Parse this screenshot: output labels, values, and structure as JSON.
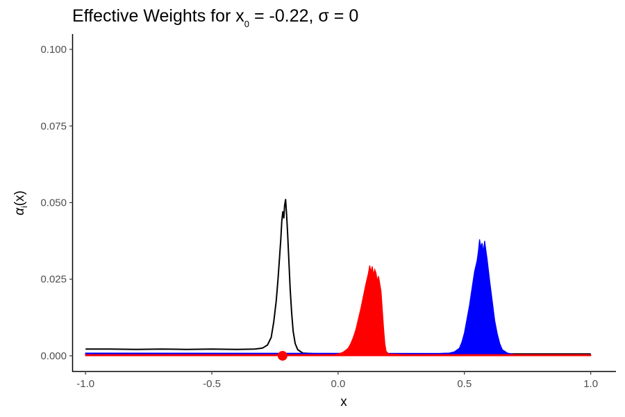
{
  "chart_data": {
    "type": "area",
    "title": {
      "prefix": "Effective Weights for x",
      "subscript": "0",
      "suffix": " = -0.22, σ = 0"
    },
    "xlabel": "x",
    "ylabel": {
      "symbol": "α",
      "subscript": "i",
      "suffix": "(x)"
    },
    "xlim": [
      -1.05,
      1.1
    ],
    "ylim": [
      -0.005,
      0.105
    ],
    "x_ticks": [
      {
        "value": -1.0,
        "label": "-1.0"
      },
      {
        "value": -0.5,
        "label": "-0.5"
      },
      {
        "value": 0.0,
        "label": "0.0"
      },
      {
        "value": 0.5,
        "label": "0.5"
      },
      {
        "value": 1.0,
        "label": "1.0"
      }
    ],
    "y_ticks": [
      {
        "value": 0.0,
        "label": "0.000"
      },
      {
        "value": 0.025,
        "label": "0.025"
      },
      {
        "value": 0.05,
        "label": "0.050"
      },
      {
        "value": 0.075,
        "label": "0.075"
      },
      {
        "value": 0.1,
        "label": "0.100"
      }
    ],
    "grid": false,
    "legend": "none",
    "series": [
      {
        "style": "line",
        "color": "#000000",
        "points": [
          [
            -1.0,
            0.0022
          ],
          [
            -0.9,
            0.0022
          ],
          [
            -0.8,
            0.0021
          ],
          [
            -0.7,
            0.0022
          ],
          [
            -0.6,
            0.0021
          ],
          [
            -0.5,
            0.0022
          ],
          [
            -0.4,
            0.0021
          ],
          [
            -0.33,
            0.0022
          ],
          [
            -0.3,
            0.0025
          ],
          [
            -0.28,
            0.0035
          ],
          [
            -0.265,
            0.006
          ],
          [
            -0.255,
            0.011
          ],
          [
            -0.245,
            0.018
          ],
          [
            -0.238,
            0.025
          ],
          [
            -0.232,
            0.032
          ],
          [
            -0.227,
            0.038
          ],
          [
            -0.223,
            0.044
          ],
          [
            -0.219,
            0.047
          ],
          [
            -0.215,
            0.045
          ],
          [
            -0.212,
            0.049
          ],
          [
            -0.208,
            0.051
          ],
          [
            -0.204,
            0.046
          ],
          [
            -0.2,
            0.04
          ],
          [
            -0.195,
            0.031
          ],
          [
            -0.19,
            0.022
          ],
          [
            -0.184,
            0.014
          ],
          [
            -0.178,
            0.008
          ],
          [
            -0.17,
            0.004
          ],
          [
            -0.16,
            0.002
          ],
          [
            -0.14,
            0.0009
          ],
          [
            -0.1,
            0.0007
          ],
          [
            0.0,
            0.0006
          ],
          [
            0.5,
            0.0006
          ],
          [
            1.0,
            0.0006
          ]
        ]
      },
      {
        "style": "filled",
        "color": "#0000ff",
        "baseline": 0.0004,
        "points": [
          [
            -1.0,
            0.0009
          ],
          [
            0.4,
            0.0008
          ],
          [
            0.44,
            0.0009
          ],
          [
            0.46,
            0.0013
          ],
          [
            0.48,
            0.0025
          ],
          [
            0.49,
            0.0045
          ],
          [
            0.5,
            0.0075
          ],
          [
            0.51,
            0.012
          ],
          [
            0.52,
            0.0165
          ],
          [
            0.53,
            0.022
          ],
          [
            0.54,
            0.0275
          ],
          [
            0.55,
            0.031
          ],
          [
            0.555,
            0.034
          ],
          [
            0.56,
            0.038
          ],
          [
            0.565,
            0.0355
          ],
          [
            0.57,
            0.0368
          ],
          [
            0.575,
            0.034
          ],
          [
            0.58,
            0.0375
          ],
          [
            0.585,
            0.0345
          ],
          [
            0.59,
            0.0315
          ],
          [
            0.6,
            0.0245
          ],
          [
            0.61,
            0.018
          ],
          [
            0.62,
            0.0115
          ],
          [
            0.63,
            0.0072
          ],
          [
            0.64,
            0.004
          ],
          [
            0.65,
            0.002
          ],
          [
            0.67,
            0.0009
          ],
          [
            0.7,
            0.0004
          ],
          [
            1.0,
            0.0003
          ]
        ]
      },
      {
        "style": "filled",
        "color": "#ff0000",
        "baseline": 0.0,
        "points": [
          [
            -1.0,
            0.0003
          ],
          [
            -0.02,
            0.0003
          ],
          [
            0.0,
            0.0006
          ],
          [
            0.02,
            0.0012
          ],
          [
            0.04,
            0.0025
          ],
          [
            0.05,
            0.004
          ],
          [
            0.06,
            0.006
          ],
          [
            0.07,
            0.0085
          ],
          [
            0.08,
            0.012
          ],
          [
            0.09,
            0.0155
          ],
          [
            0.1,
            0.0195
          ],
          [
            0.11,
            0.0235
          ],
          [
            0.12,
            0.027
          ],
          [
            0.125,
            0.0295
          ],
          [
            0.13,
            0.0275
          ],
          [
            0.135,
            0.0292
          ],
          [
            0.14,
            0.0265
          ],
          [
            0.145,
            0.0282
          ],
          [
            0.15,
            0.027
          ],
          [
            0.155,
            0.0245
          ],
          [
            0.16,
            0.026
          ],
          [
            0.165,
            0.0235
          ],
          [
            0.17,
            0.021
          ],
          [
            0.175,
            0.015
          ],
          [
            0.18,
            0.009
          ],
          [
            0.185,
            0.004
          ],
          [
            0.19,
            0.0015
          ],
          [
            0.2,
            0.0006
          ],
          [
            0.3,
            0.0003
          ],
          [
            1.0,
            0.0003
          ]
        ]
      },
      {
        "style": "line",
        "color": "#ff0000",
        "points": [
          [
            -1.0,
            0.0003
          ],
          [
            1.0,
            0.0003
          ]
        ]
      }
    ],
    "marker": {
      "x": -0.22,
      "y": 0.0,
      "color": "#ff0000"
    }
  }
}
